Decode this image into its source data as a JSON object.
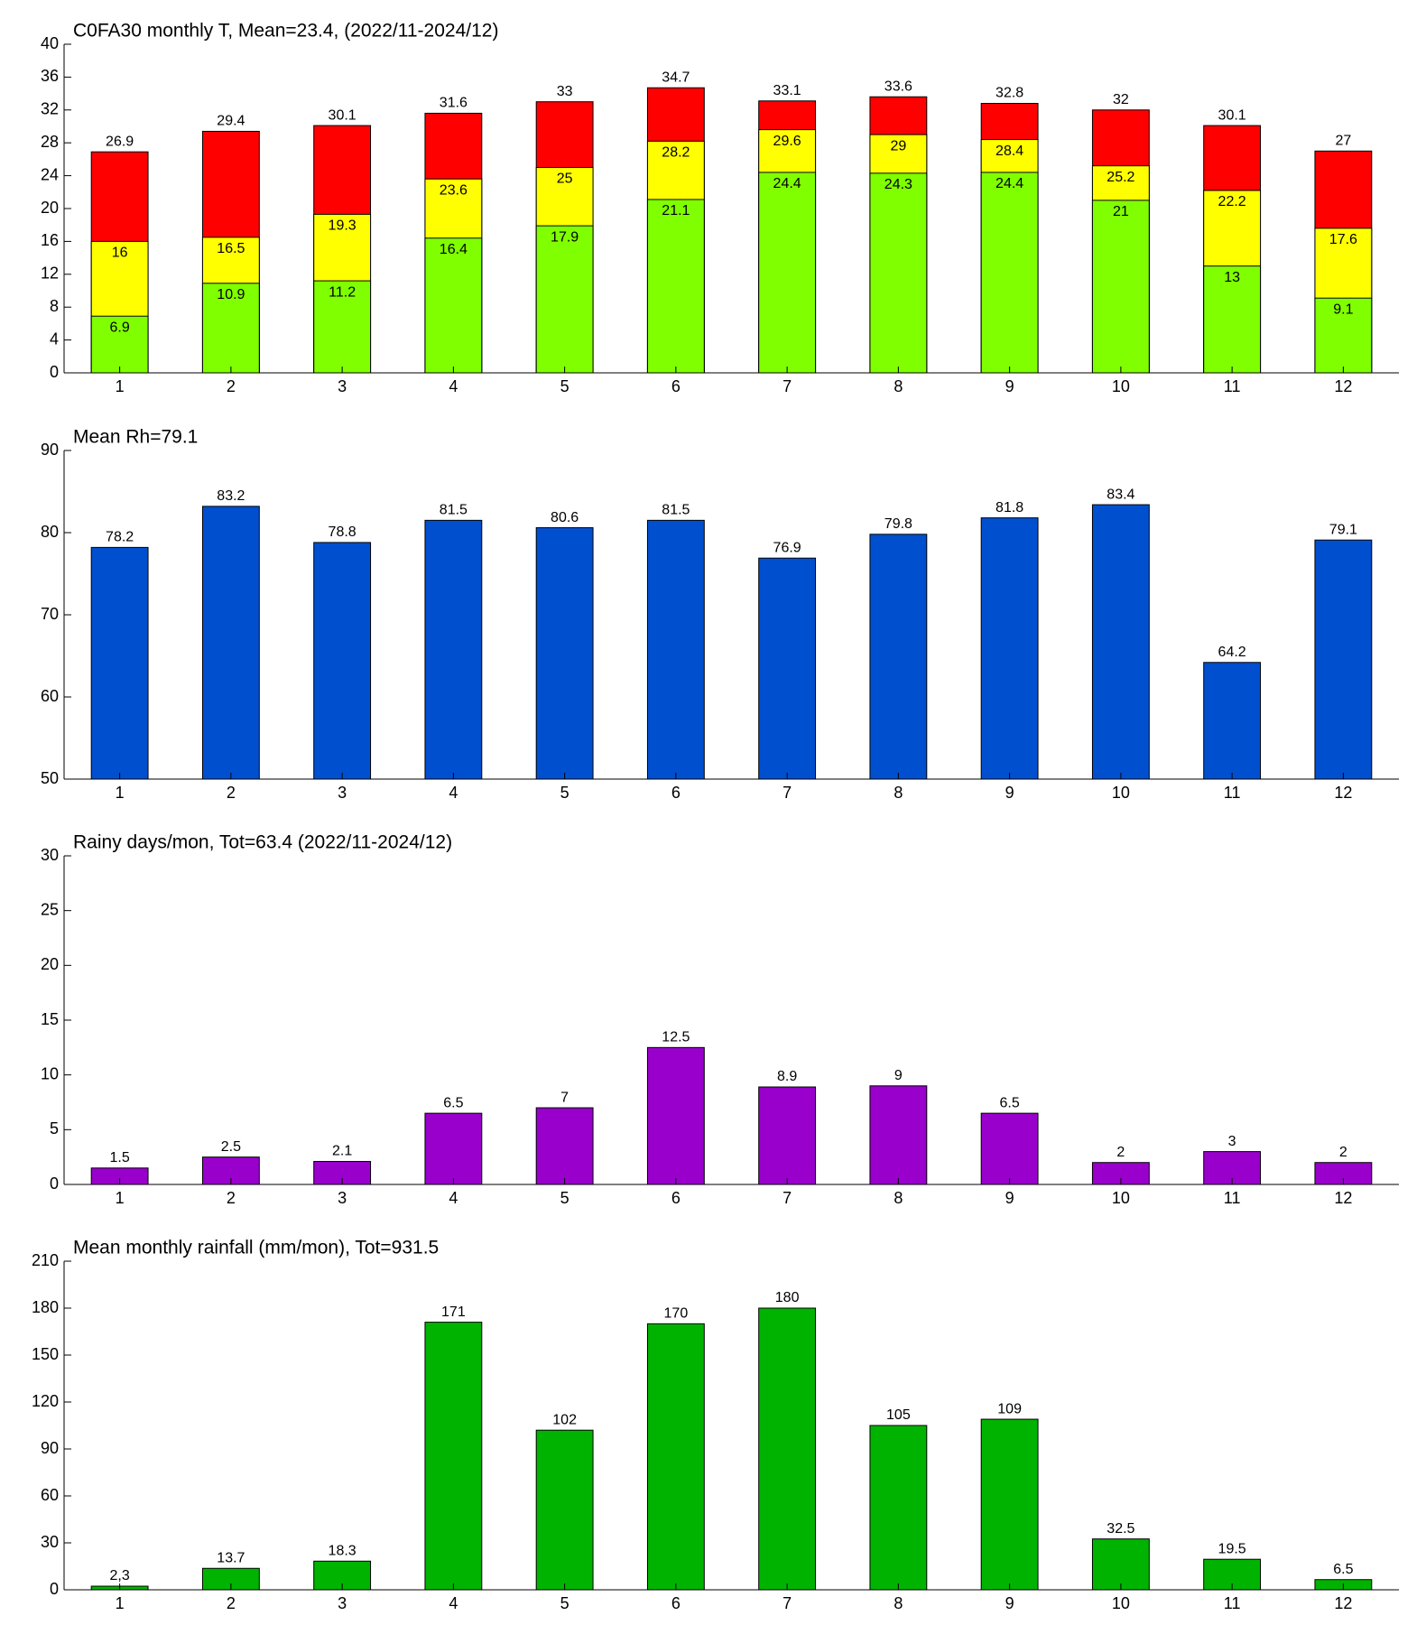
{
  "chart_data": [
    {
      "type": "bar",
      "barmode": "overlay",
      "title": "C0FA30 monthly T, Mean=23.4, (2022/11-2024/12)",
      "categories": [
        "1",
        "2",
        "3",
        "4",
        "5",
        "6",
        "7",
        "8",
        "9",
        "10",
        "11",
        "12"
      ],
      "series": [
        {
          "color": "#ff0000",
          "values": [
            26.9,
            29.4,
            30.1,
            31.6,
            33,
            34.7,
            33.1,
            33.6,
            32.8,
            32,
            30.1,
            27
          ]
        },
        {
          "color": "#ffff00",
          "values": [
            16,
            16.5,
            19.3,
            23.6,
            25,
            28.2,
            29.6,
            29,
            28.4,
            25.2,
            22.2,
            17.6
          ]
        },
        {
          "color": "#80ff00",
          "values": [
            6.9,
            10.9,
            11.2,
            16.4,
            17.9,
            21.1,
            24.4,
            24.3,
            24.4,
            21,
            13,
            9.1
          ]
        }
      ],
      "ylim": [
        0,
        40
      ],
      "yticks": [
        0,
        4,
        8,
        12,
        16,
        20,
        24,
        28,
        32,
        36,
        40
      ]
    },
    {
      "type": "bar",
      "title": "Mean Rh=79.1",
      "categories": [
        "1",
        "2",
        "3",
        "4",
        "5",
        "6",
        "7",
        "8",
        "9",
        "10",
        "11",
        "12"
      ],
      "values": [
        78.2,
        83.2,
        78.8,
        81.5,
        80.6,
        81.5,
        76.9,
        79.8,
        81.8,
        83.4,
        64.2,
        79.1
      ],
      "color": "#004fcf",
      "ylim": [
        50,
        90
      ],
      "yticks": [
        50,
        60,
        70,
        80,
        90
      ]
    },
    {
      "type": "bar",
      "title": "Rainy days/mon, Tot=63.4 (2022/11-2024/12)",
      "categories": [
        "1",
        "2",
        "3",
        "4",
        "5",
        "6",
        "7",
        "8",
        "9",
        "10",
        "11",
        "12"
      ],
      "values": [
        1.5,
        2.5,
        2.1,
        6.5,
        7,
        12.5,
        8.9,
        9,
        6.5,
        2,
        3,
        2
      ],
      "color": "#9900cc",
      "ylim": [
        0,
        30
      ],
      "yticks": [
        0,
        5,
        10,
        15,
        20,
        25,
        30
      ]
    },
    {
      "type": "bar",
      "title": "Mean monthly rainfall (mm/mon), Tot=931.5",
      "categories": [
        "1",
        "2",
        "3",
        "4",
        "5",
        "6",
        "7",
        "8",
        "9",
        "10",
        "11",
        "12"
      ],
      "values": [
        2.3,
        13.7,
        18.3,
        171,
        102,
        170,
        180,
        105,
        109,
        32.5,
        19.5,
        6.5
      ],
      "value_labels": [
        "2,3",
        "13.7",
        "18.3",
        "171",
        "102",
        "170",
        "180",
        "105",
        "109",
        "32.5",
        "19.5",
        "6.5"
      ],
      "color": "#00b300",
      "ylim": [
        0,
        210
      ],
      "yticks": [
        0,
        30,
        60,
        90,
        120,
        150,
        180,
        210
      ]
    }
  ]
}
